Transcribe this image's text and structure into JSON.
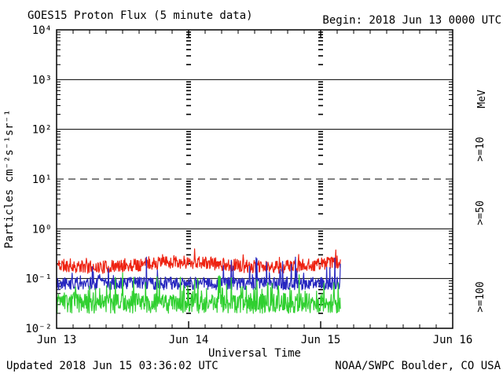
{
  "header": {
    "title": "GOES15 Proton Flux (5 minute data)",
    "begin": "Begin: 2018 Jun 13 0000 UTC"
  },
  "footer": {
    "updated": "Updated 2018 Jun 15 03:36:02 UTC",
    "source": "NOAA/SWPC Boulder, CO USA"
  },
  "chart_data": {
    "type": "line",
    "title": "GOES15 Proton Flux (5 minute data)",
    "xlabel": "Universal Time",
    "ylabel": "Particles cm⁻²s⁻¹sr⁻¹",
    "right_axis_title": "MeV",
    "x_tick_labels": [
      "Jun 13",
      "Jun 14",
      "Jun 15",
      "Jun 16"
    ],
    "y_tick_labels": [
      "10⁴",
      "10³",
      "10²",
      "10¹",
      "10⁰",
      "10⁻¹",
      "10⁻²"
    ],
    "y_decade_exponents": [
      4,
      3,
      2,
      1,
      0,
      -1,
      -2
    ],
    "ylim": [
      0.01,
      10000
    ],
    "x_span_days": 3,
    "minor_ticks_per_day": 8,
    "x_start_label": "2018 Jun 13 0000 UTC",
    "grid": {
      "hlines": [
        {
          "log10": 3,
          "style": "solid"
        },
        {
          "log10": 2,
          "style": "solid"
        },
        {
          "log10": 1,
          "style": "dashed"
        },
        {
          "log10": 0,
          "style": "solid"
        },
        {
          "log10": -1,
          "style": "solid"
        }
      ],
      "day_boundary_tick_columns_at_days": [
        1,
        2
      ]
    },
    "cadence_minutes": 5,
    "data_end_days": 2.15,
    "legend_position": "right-rotated",
    "axis_color": "#000000",
    "series": [
      {
        "label": ">=10",
        "color": "#ee2211",
        "approx_median_flux": 0.2,
        "approx_range": [
          0.14,
          0.45
        ],
        "base_log10": -0.72,
        "noise_log10": 0.13,
        "spike_prob": 0.05,
        "spike_log10": 0.25,
        "wave_amp_log10": 0.05,
        "wave_period_days": 1.3,
        "floor_log10": -0.95,
        "seed": 11
      },
      {
        "label": ">=50",
        "color": "#2828c0",
        "approx_median_flux": 0.08,
        "approx_range": [
          0.055,
          0.3
        ],
        "base_log10": -1.1,
        "noise_log10": 0.13,
        "spike_prob": 0.06,
        "spike_log10": 0.5,
        "wave_amp_log10": 0.0,
        "wave_period_days": 1,
        "floor_log10": -1.28,
        "seed": 22
      },
      {
        "label": ">=100",
        "color": "#30d030",
        "approx_median_flux": 0.035,
        "approx_range": [
          0.02,
          0.13
        ],
        "base_log10": -1.5,
        "noise_log10": 0.2,
        "spike_prob": 0.15,
        "spike_log10": 0.45,
        "wave_amp_log10": 0.0,
        "wave_period_days": 1,
        "floor_log10": -1.72,
        "seed": 33
      }
    ]
  }
}
